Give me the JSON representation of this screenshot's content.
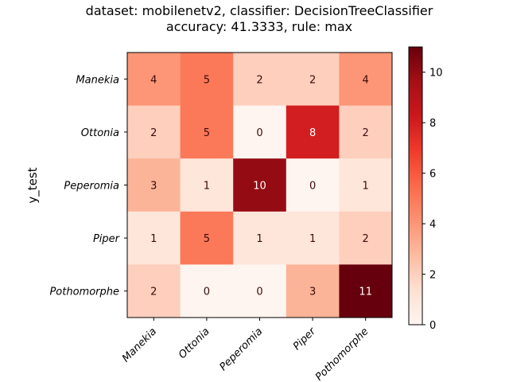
{
  "chart_data": {
    "type": "heatmap",
    "title_line1": "dataset: mobilenetv2, classifier: DecisionTreeClassifier",
    "title_line2": "accuracy: 41.3333, rule: max",
    "xlabel": "",
    "ylabel": "y_test",
    "x_categories": [
      "Manekia",
      "Ottonia",
      "Peperomia",
      "Piper",
      "Pothomorphe"
    ],
    "y_categories": [
      "Manekia",
      "Ottonia",
      "Peperomia",
      "Piper",
      "Pothomorphe"
    ],
    "matrix": [
      [
        4,
        5,
        2,
        2,
        4
      ],
      [
        2,
        5,
        0,
        8,
        2
      ],
      [
        3,
        1,
        10,
        0,
        1
      ],
      [
        1,
        5,
        1,
        1,
        2
      ],
      [
        2,
        0,
        0,
        3,
        11
      ]
    ],
    "colormap": "Reds",
    "colorbar": {
      "min": 0,
      "max": 11,
      "ticks": [
        0,
        2,
        4,
        6,
        8,
        10
      ]
    },
    "grid": false
  }
}
